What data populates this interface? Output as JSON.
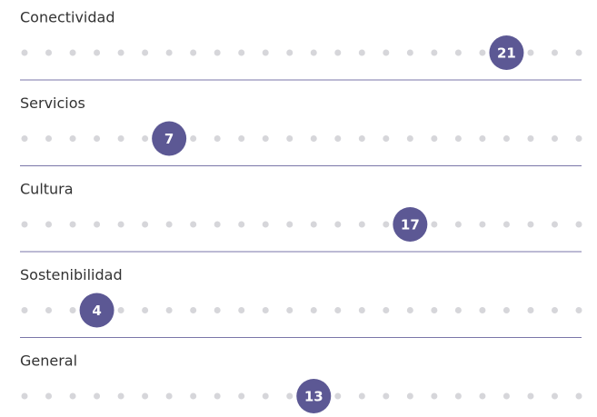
{
  "chart_data": {
    "type": "rank",
    "categories": [
      "Conectividad",
      "Servicios",
      "Cultura",
      "Sostenibilidad",
      "General"
    ],
    "values": [
      21,
      7,
      17,
      4,
      13
    ],
    "xlim": [
      1,
      24
    ],
    "color": "#5c5894"
  }
}
